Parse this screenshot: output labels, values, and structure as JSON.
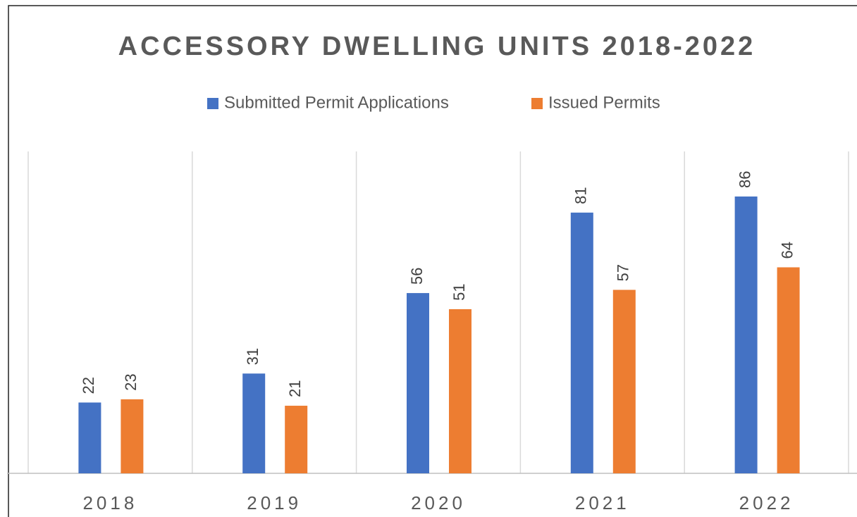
{
  "chart_data": {
    "type": "bar",
    "title": "ACCESSORY DWELLING UNITS 2018-2022",
    "categories": [
      "2018",
      "2019",
      "2020",
      "2021",
      "2022"
    ],
    "series": [
      {
        "name": "Submitted Permit Applications",
        "color": "#4472c4",
        "values": [
          22,
          31,
          56,
          81,
          86
        ]
      },
      {
        "name": "Issued Permits",
        "color": "#ed7d31",
        "values": [
          23,
          21,
          51,
          57,
          64
        ]
      }
    ],
    "ylim": [
      0,
      100
    ],
    "legend": "top"
  }
}
